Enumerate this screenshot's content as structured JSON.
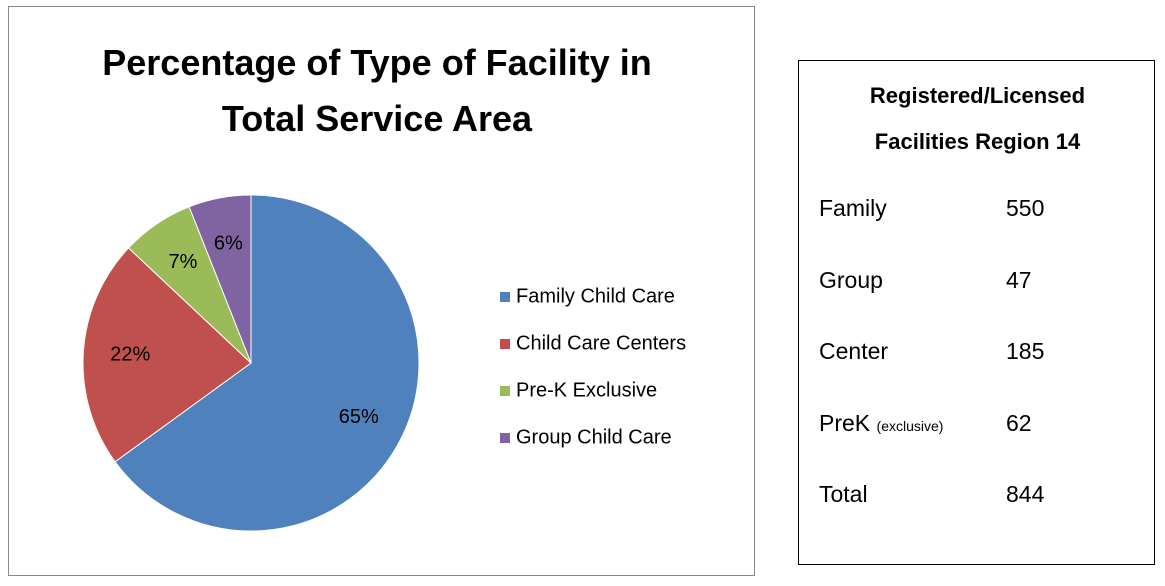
{
  "chart_data": {
    "type": "pie",
    "title": "Percentage of Type of Facility in Total Service Area",
    "categories": [
      "Family Child Care",
      "Child Care Centers",
      "Pre-K Exclusive",
      "Group Child Care"
    ],
    "values": [
      65,
      22,
      7,
      6
    ],
    "value_labels": [
      "65%",
      "22%",
      "7%",
      "6%"
    ],
    "colors": [
      "#4f81bd",
      "#c0504d",
      "#9bbb59",
      "#8064a2"
    ],
    "legend": "right"
  },
  "table": {
    "title": "Registered/Licensed Facilities Region 14",
    "rows": [
      {
        "label": "Family",
        "value": 550
      },
      {
        "label": "Group",
        "value": 47
      },
      {
        "label": "Center",
        "value": 185
      },
      {
        "label": "PreK",
        "qualifier": "(exclusive)",
        "value": 62
      },
      {
        "label": "Total",
        "value": 844
      }
    ]
  }
}
